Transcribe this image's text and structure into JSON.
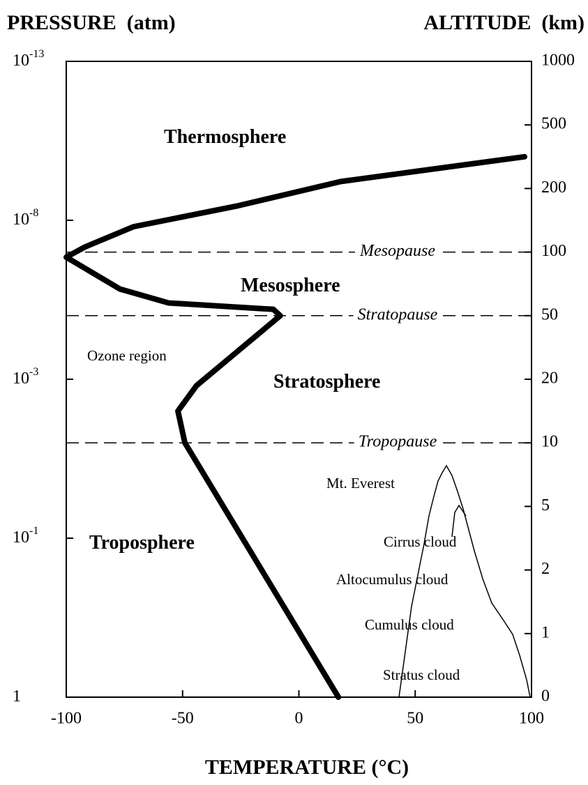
{
  "chart_data": {
    "type": "line",
    "left_axis_label": "PRESSURE  (atm)",
    "right_axis_label": "ALTITUDE  (km)",
    "x_axis_label": "TEMPERATURE (°C)",
    "xlim": [
      -100,
      100
    ],
    "xticks": [
      -100,
      -50,
      0,
      50,
      100
    ],
    "yticks": [
      {
        "value": 1,
        "label": "1"
      },
      {
        "value": 0.1,
        "label": "10",
        "exponent": "-1"
      },
      {
        "value": 0.001,
        "label": "10",
        "exponent": "-3"
      },
      {
        "value": 1e-08,
        "label": "10",
        "exponent": "-8"
      },
      {
        "value": 1e-13,
        "label": "10",
        "exponent": "-13"
      }
    ],
    "y2lim": [
      0,
      1000
    ],
    "y2ticks": [
      0,
      1,
      2,
      5,
      10,
      20,
      50,
      100,
      200,
      500,
      1000
    ],
    "series": [
      {
        "axis": "y2",
        "color": "#000000",
        "x": [
          17,
          -49,
          -52,
          -44,
          -8,
          -11,
          -56,
          -77,
          -100,
          -92,
          -71,
          -26,
          18,
          97
        ],
        "values": [
          0,
          10,
          15,
          19,
          50,
          55,
          60,
          71,
          96,
          108,
          140,
          173,
          233,
          350
        ]
      }
    ],
    "boundaries": [
      {
        "label": "Mesopause",
        "altitude": 100
      },
      {
        "label": "Stratopause",
        "altitude": 50
      },
      {
        "label": "Tropopause",
        "altitude": 10
      }
    ],
    "regions": [
      "Thermosphere",
      "Mesosphere",
      "Stratosphere",
      "Troposphere"
    ],
    "annotations": [
      "Ozone region",
      "Mt. Everest",
      "Cirrus cloud",
      "Altocumulus cloud",
      "Cumulus cloud",
      "Stratus cloud"
    ]
  }
}
